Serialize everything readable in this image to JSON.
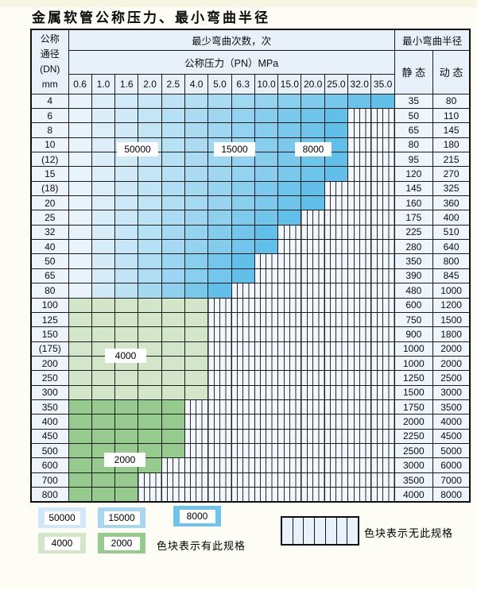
{
  "title": "金属软管公称压力、最小弯曲半径",
  "table": {
    "dn_header_lines": [
      "公称",
      "通径",
      "(DN)",
      "mm"
    ],
    "bend_cycles_header": "最少弯曲次数，次",
    "pressure_header": "公称压力（PN）MPa",
    "radius_header": "最小弯曲半径",
    "static_header": "静 态",
    "dynamic_header": "动 态",
    "pressure_columns": [
      "0.6",
      "1.0",
      "1.6",
      "2.0",
      "2.5",
      "4.0",
      "5.0",
      "6.3",
      "10.0",
      "15.0",
      "20.0",
      "25.0",
      "32.0",
      "35.0"
    ],
    "rows": [
      {
        "dn": "4",
        "colored_cols": 14,
        "palette": "blue",
        "static": "35",
        "dynamic": "80"
      },
      {
        "dn": "6",
        "colored_cols": 12,
        "palette": "blue",
        "static": "50",
        "dynamic": "110"
      },
      {
        "dn": "8",
        "colored_cols": 12,
        "palette": "blue",
        "static": "65",
        "dynamic": "145"
      },
      {
        "dn": "10",
        "colored_cols": 12,
        "palette": "blue",
        "static": "80",
        "dynamic": "180"
      },
      {
        "dn": "(12)",
        "colored_cols": 12,
        "palette": "blue",
        "static": "95",
        "dynamic": "215"
      },
      {
        "dn": "15",
        "colored_cols": 12,
        "palette": "blue",
        "static": "120",
        "dynamic": "270"
      },
      {
        "dn": "(18)",
        "colored_cols": 11,
        "palette": "blue",
        "static": "145",
        "dynamic": "325"
      },
      {
        "dn": "20",
        "colored_cols": 11,
        "palette": "blue",
        "static": "160",
        "dynamic": "360"
      },
      {
        "dn": "25",
        "colored_cols": 10,
        "palette": "blue",
        "static": "175",
        "dynamic": "400"
      },
      {
        "dn": "32",
        "colored_cols": 9,
        "palette": "blue",
        "static": "225",
        "dynamic": "510"
      },
      {
        "dn": "40",
        "colored_cols": 9,
        "palette": "blue",
        "static": "280",
        "dynamic": "640"
      },
      {
        "dn": "50",
        "colored_cols": 8,
        "palette": "blue",
        "static": "350",
        "dynamic": "800"
      },
      {
        "dn": "65",
        "colored_cols": 8,
        "palette": "blue",
        "static": "390",
        "dynamic": "845"
      },
      {
        "dn": "80",
        "colored_cols": 7,
        "palette": "blue",
        "static": "480",
        "dynamic": "1000"
      },
      {
        "dn": "100",
        "colored_cols": 6,
        "palette": "green_light",
        "static": "600",
        "dynamic": "1200"
      },
      {
        "dn": "125",
        "colored_cols": 6,
        "palette": "green_light",
        "static": "750",
        "dynamic": "1500"
      },
      {
        "dn": "150",
        "colored_cols": 6,
        "palette": "green_light",
        "static": "900",
        "dynamic": "1800"
      },
      {
        "dn": "(175)",
        "colored_cols": 6,
        "palette": "green_light",
        "static": "1000",
        "dynamic": "2000"
      },
      {
        "dn": "200",
        "colored_cols": 6,
        "palette": "green_light",
        "static": "1000",
        "dynamic": "2000"
      },
      {
        "dn": "250",
        "colored_cols": 6,
        "palette": "green_light",
        "static": "1250",
        "dynamic": "2500"
      },
      {
        "dn": "300",
        "colored_cols": 6,
        "palette": "green_light",
        "static": "1500",
        "dynamic": "3000"
      },
      {
        "dn": "350",
        "colored_cols": 5,
        "palette": "green_dark",
        "static": "1750",
        "dynamic": "3500"
      },
      {
        "dn": "400",
        "colored_cols": 5,
        "palette": "green_dark",
        "static": "2000",
        "dynamic": "4000"
      },
      {
        "dn": "450",
        "colored_cols": 5,
        "palette": "green_dark",
        "static": "2250",
        "dynamic": "4500"
      },
      {
        "dn": "500",
        "colored_cols": 5,
        "palette": "green_dark",
        "static": "2500",
        "dynamic": "5000"
      },
      {
        "dn": "600",
        "colored_cols": 4,
        "palette": "green_dark",
        "static": "3000",
        "dynamic": "6000"
      },
      {
        "dn": "700",
        "colored_cols": 3,
        "palette": "green_dark",
        "static": "3500",
        "dynamic": "7000"
      },
      {
        "dn": "800",
        "colored_cols": 3,
        "palette": "green_dark",
        "static": "4000",
        "dynamic": "8000"
      }
    ]
  },
  "overlay_labels": [
    {
      "text": "50000"
    },
    {
      "text": "15000"
    },
    {
      "text": "8000"
    },
    {
      "text": "4000"
    },
    {
      "text": "2000"
    }
  ],
  "colors": {
    "blue_light": "#e8f3fb",
    "blue_dark": "#62bfe9",
    "green_light": "#d4e6ca",
    "green_dark": "#96ca8f"
  },
  "legend": {
    "swatches": [
      {
        "label": "50000",
        "color": "#d2e7f7"
      },
      {
        "label": "15000",
        "color": "#a9d6f1"
      },
      {
        "label": "8000",
        "color": "#72c3e9"
      },
      {
        "label": "4000",
        "color": "#d4e6ca"
      },
      {
        "label": "2000",
        "color": "#96ca8f"
      }
    ],
    "has_spec_text": "色块表示有此规格",
    "no_spec_text": "色块表示无此规格"
  }
}
